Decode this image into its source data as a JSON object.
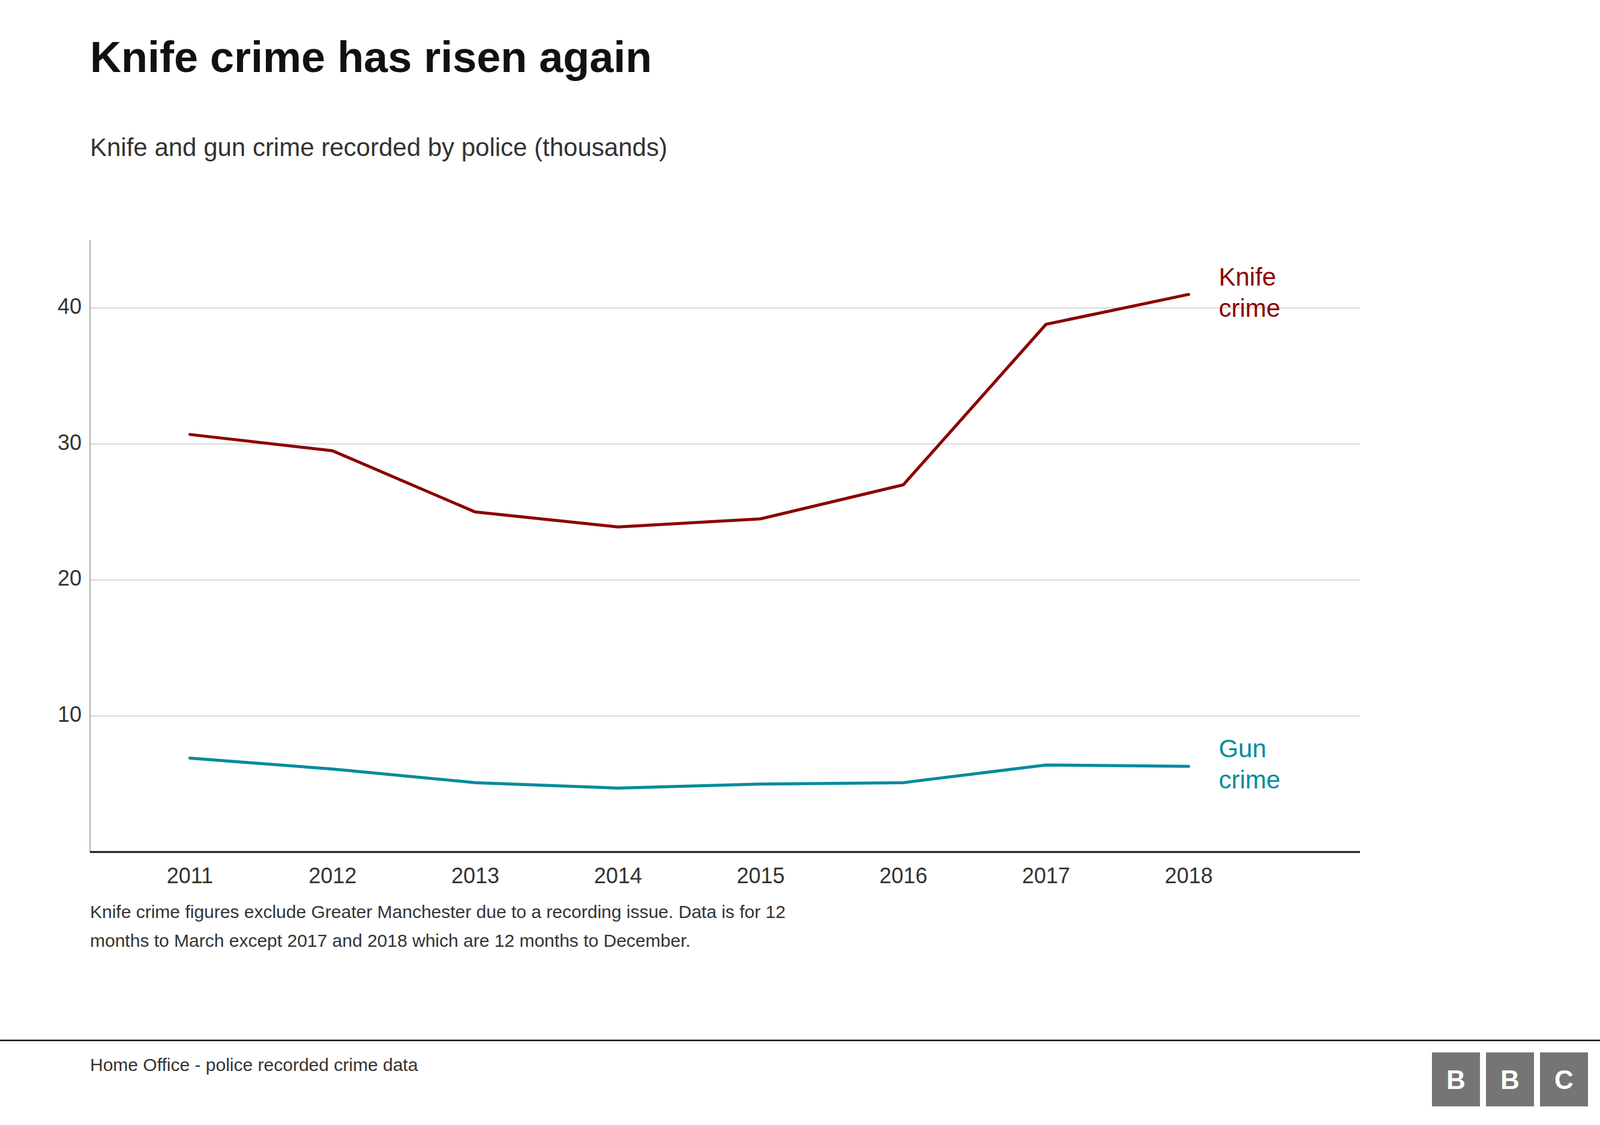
{
  "chart_data": {
    "type": "line",
    "title": "Knife crime has risen again",
    "subtitle": "Knife and gun crime recorded by police (thousands)",
    "x": [
      2011,
      2012,
      2013,
      2014,
      2015,
      2016,
      2017,
      2018
    ],
    "series": [
      {
        "name": "Knife crime",
        "color": "#8B0000",
        "values": [
          30.7,
          29.5,
          25.0,
          23.9,
          24.5,
          27.0,
          38.8,
          41.0
        ]
      },
      {
        "name": "Gun crime",
        "color": "#008B9B",
        "values": [
          6.9,
          6.1,
          5.1,
          4.7,
          5.0,
          5.1,
          6.4,
          6.3
        ]
      }
    ],
    "xlim": [
      2010.3,
      2019.2
    ],
    "xticks": [
      2011,
      2012,
      2013,
      2014,
      2015,
      2016,
      2017,
      2018
    ],
    "ylim": [
      0,
      45
    ],
    "yticks": [
      {
        "value": 0,
        "label": null
      },
      10,
      20,
      30,
      40
    ],
    "grid": true,
    "footnote": [
      "Knife crime figures exclude Greater Manchester due to a recording issue. Data is for 12",
      "months to March except 2017 and 2018 which are 12 months to December."
    ],
    "source": "Home Office - police recorded crime data",
    "logo": {
      "letters": [
        "B",
        "B",
        "C"
      ],
      "color": "#757575"
    }
  }
}
